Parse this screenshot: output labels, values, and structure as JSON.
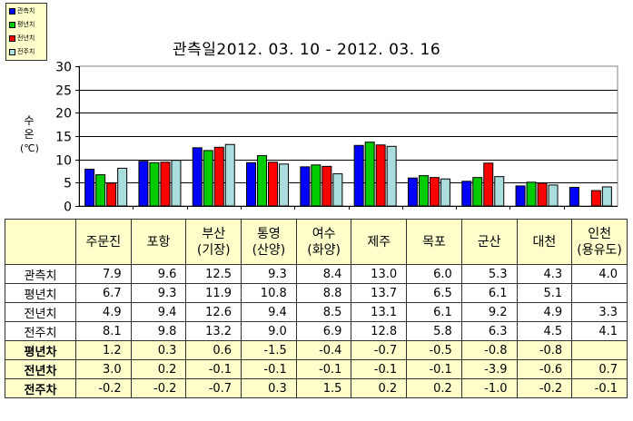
{
  "legend": [
    {
      "label": "관측치",
      "color": "#0000ff"
    },
    {
      "label": "평년치",
      "color": "#00cc00"
    },
    {
      "label": "전년치",
      "color": "#ff0000"
    },
    {
      "label": "전주치",
      "color": "#aadddd"
    }
  ],
  "chart_data": {
    "type": "bar",
    "title": "관측일2012. 03. 10  -  2012. 03. 16",
    "ylabel": "수\n온\n(℃)",
    "ylim": [
      0,
      30
    ],
    "yticks": [
      "0",
      "5",
      "10",
      "15",
      "20",
      "25",
      "30"
    ],
    "grid": true,
    "categories": [
      "주문진",
      "포항",
      "부산(기장)",
      "통영(산양)",
      "여수(화양)",
      "제주",
      "목포",
      "군산",
      "대천",
      "인천(용유도)"
    ],
    "series": [
      {
        "name": "관측치",
        "values": [
          7.9,
          9.6,
          12.5,
          9.3,
          8.4,
          13.0,
          6.0,
          5.3,
          4.3,
          4.0
        ]
      },
      {
        "name": "평년치",
        "values": [
          6.7,
          9.3,
          11.9,
          10.8,
          8.8,
          13.7,
          6.5,
          6.1,
          5.1,
          null
        ]
      },
      {
        "name": "전년치",
        "values": [
          4.9,
          9.4,
          12.6,
          9.4,
          8.5,
          13.1,
          6.1,
          9.2,
          4.9,
          3.3
        ]
      },
      {
        "name": "전주치",
        "values": [
          8.1,
          9.8,
          13.2,
          9.0,
          6.9,
          12.8,
          5.8,
          6.3,
          4.5,
          4.1
        ]
      }
    ]
  },
  "table": {
    "headers": [
      {
        "line1": "주문진",
        "line2": ""
      },
      {
        "line1": "포항",
        "line2": ""
      },
      {
        "line1": "부산",
        "line2": "(기장)"
      },
      {
        "line1": "통영",
        "line2": "(산양)"
      },
      {
        "line1": "여수",
        "line2": "(화양)"
      },
      {
        "line1": "제주",
        "line2": ""
      },
      {
        "line1": "목포",
        "line2": ""
      },
      {
        "line1": "군산",
        "line2": ""
      },
      {
        "line1": "대천",
        "line2": ""
      },
      {
        "line1": "인천",
        "line2": "(용유도)"
      }
    ],
    "rows": [
      {
        "label": "관측치",
        "kind": "plain",
        "cells": [
          "7.9",
          "9.6",
          "12.5",
          "9.3",
          "8.4",
          "13.0",
          "6.0",
          "5.3",
          "4.3",
          "4.0"
        ]
      },
      {
        "label": "평년치",
        "kind": "plain",
        "cells": [
          "6.7",
          "9.3",
          "11.9",
          "10.8",
          "8.8",
          "13.7",
          "6.5",
          "6.1",
          "5.1",
          ""
        ]
      },
      {
        "label": "전년치",
        "kind": "plain",
        "cells": [
          "4.9",
          "9.4",
          "12.6",
          "9.4",
          "8.5",
          "13.1",
          "6.1",
          "9.2",
          "4.9",
          "3.3"
        ]
      },
      {
        "label": "전주치",
        "kind": "plain",
        "cells": [
          "8.1",
          "9.8",
          "13.2",
          "9.0",
          "6.9",
          "12.8",
          "5.8",
          "6.3",
          "4.5",
          "4.1"
        ]
      },
      {
        "label": "평년차",
        "kind": "diff",
        "cells": [
          "1.2",
          "0.3",
          "0.6",
          "-1.5",
          "-0.4",
          "-0.7",
          "-0.5",
          "-0.8",
          "-0.8",
          ""
        ]
      },
      {
        "label": "전년차",
        "kind": "diff",
        "cells": [
          "3.0",
          "0.2",
          "-0.1",
          "-0.1",
          "-0.1",
          "-0.1",
          "-0.1",
          "-3.9",
          "-0.6",
          "0.7"
        ]
      },
      {
        "label": "전주차",
        "kind": "diff",
        "cells": [
          "-0.2",
          "-0.2",
          "-0.7",
          "0.3",
          "1.5",
          "0.2",
          "0.2",
          "-1.0",
          "-0.2",
          "-0.1"
        ]
      }
    ]
  }
}
